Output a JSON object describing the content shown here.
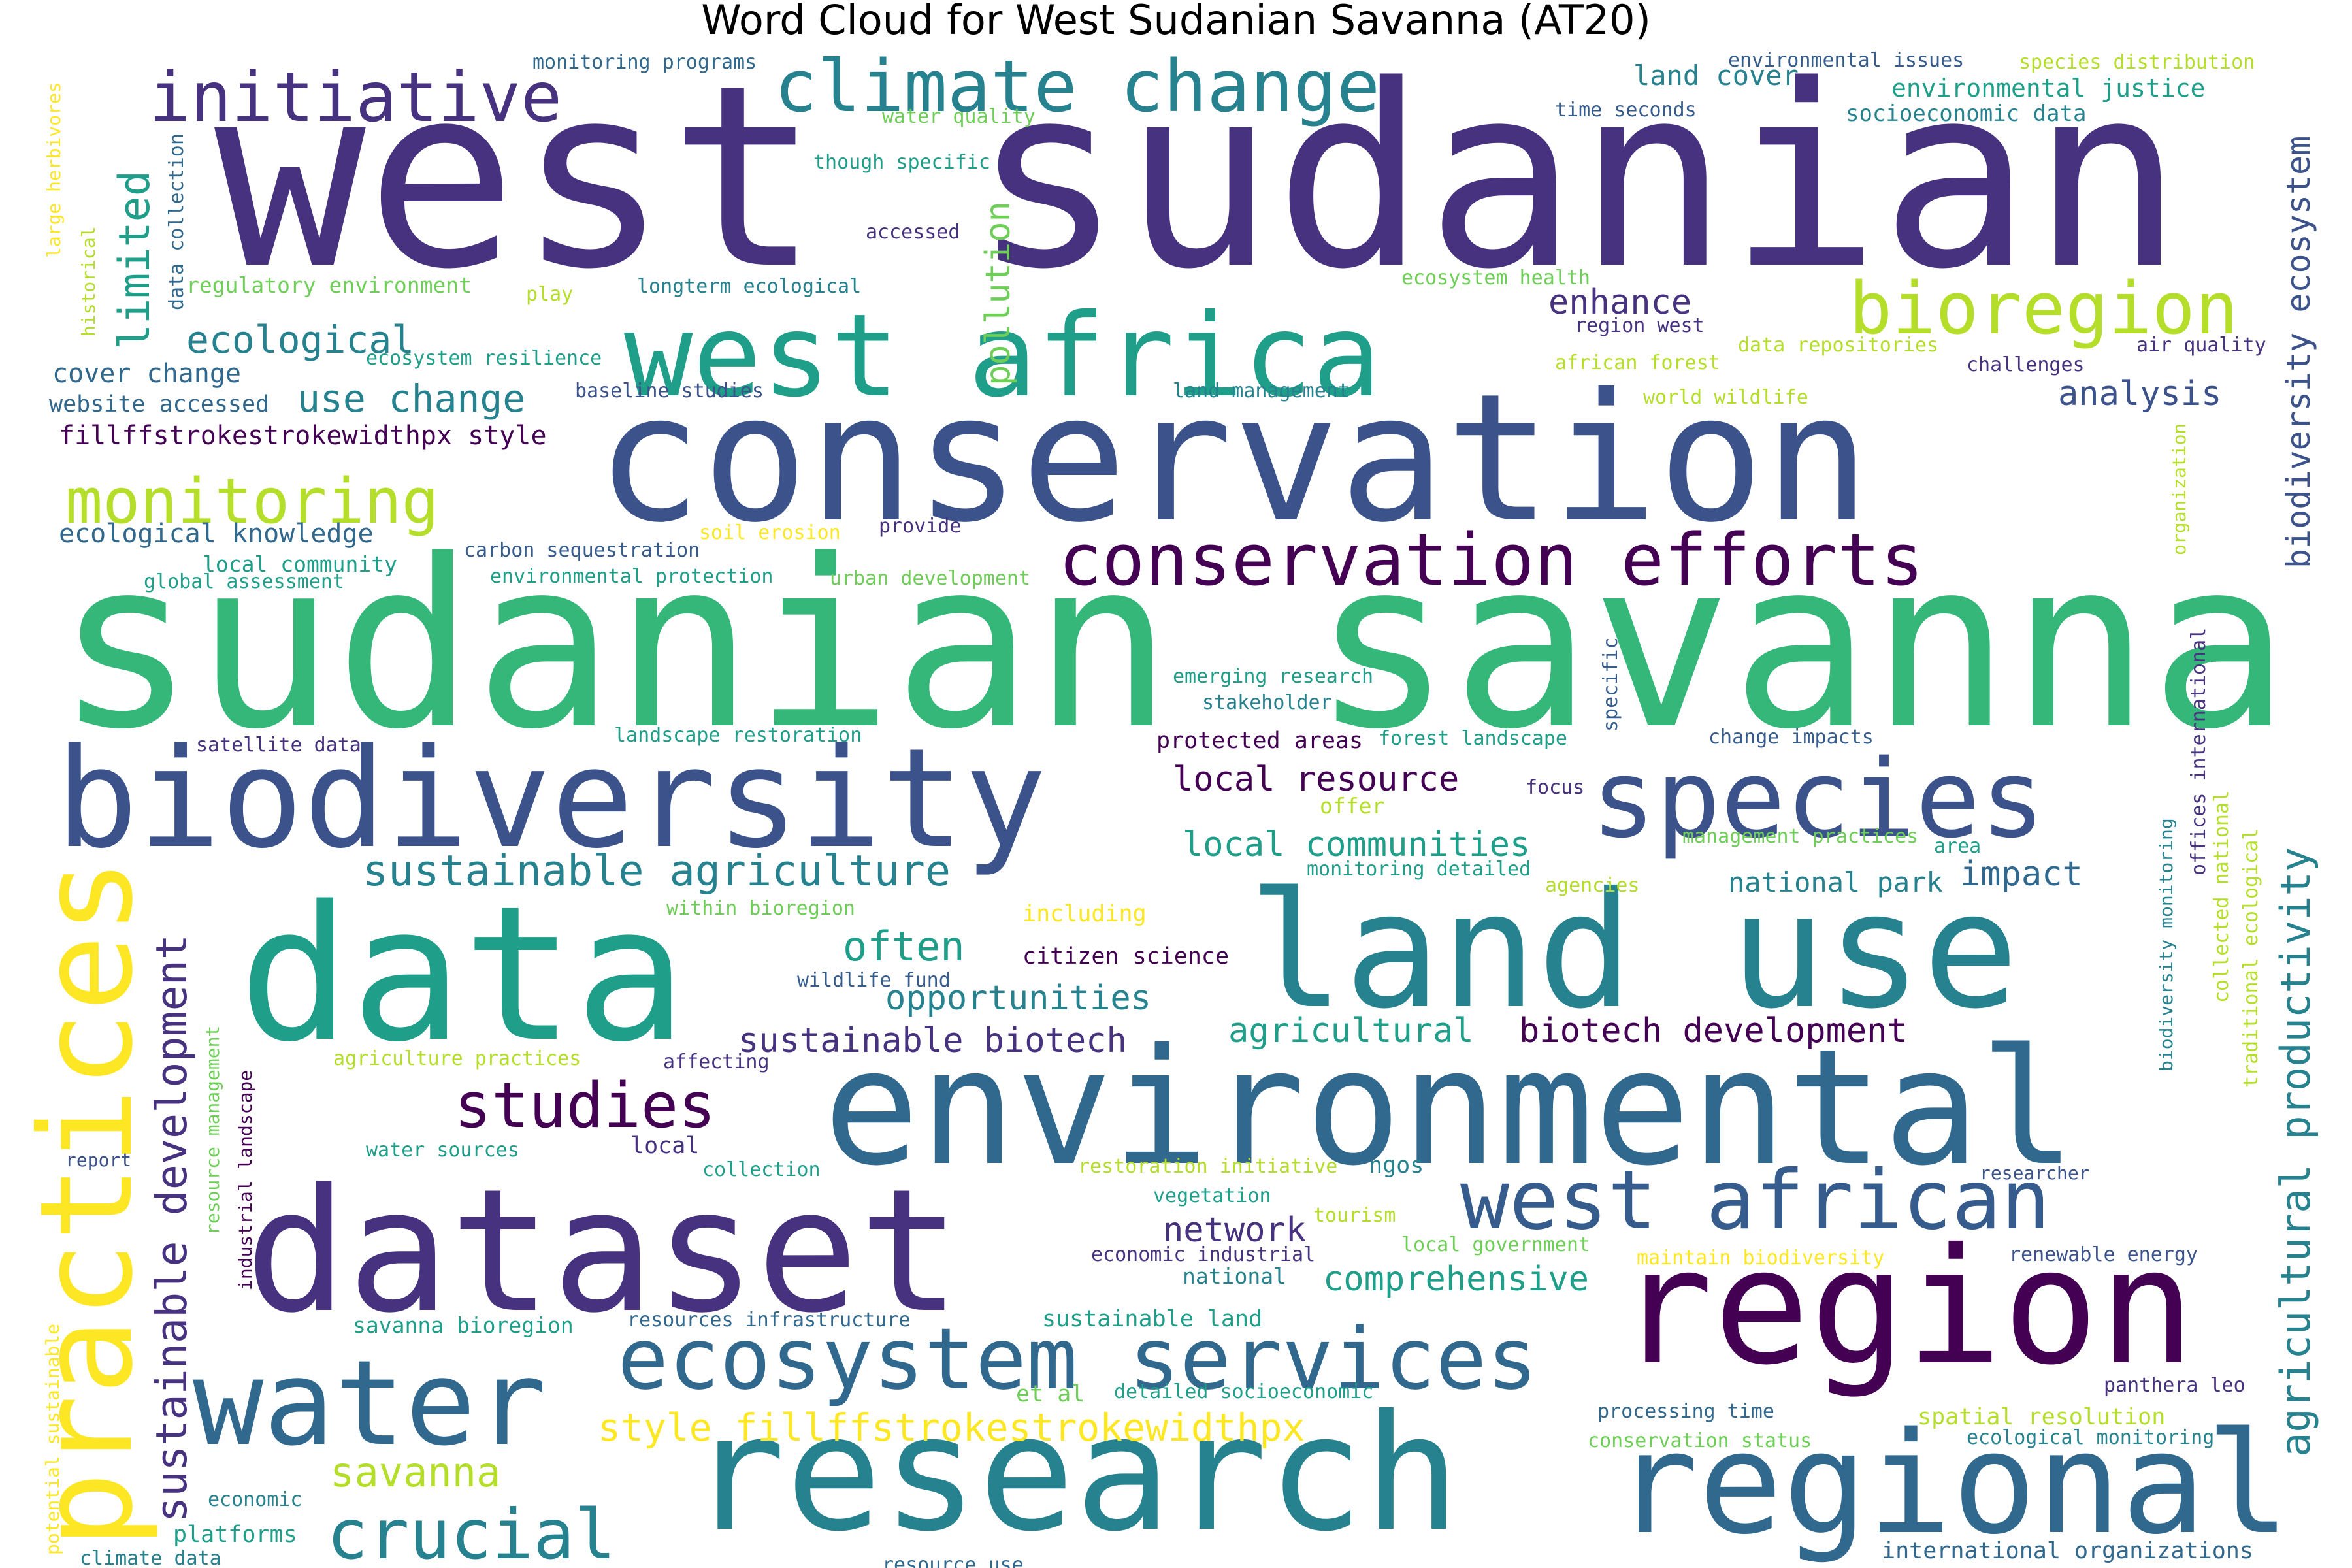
{
  "title": "Word Cloud for West Sudanian Savanna (AT20)",
  "palette": {
    "indigo": "#46327e",
    "purple": "#440154",
    "navy": "#3b528b",
    "blue": "#365c8d",
    "steel": "#31688e",
    "teal": "#26828e",
    "seagreen": "#1f9e89",
    "green": "#35b779",
    "lime": "#6ece58",
    "yellowgreen": "#b5de2b",
    "yellow": "#fde725"
  },
  "words": [
    {
      "text": "west sudanian",
      "color": "indigo"
    },
    {
      "text": "sudanian savanna",
      "color": "green"
    },
    {
      "text": "conservation",
      "color": "navy"
    },
    {
      "text": "environmental",
      "color": "steel"
    },
    {
      "text": "research",
      "color": "teal"
    },
    {
      "text": "dataset",
      "color": "indigo"
    },
    {
      "text": "data",
      "color": "seagreen"
    },
    {
      "text": "land use",
      "color": "teal"
    },
    {
      "text": "biodiversity",
      "color": "navy"
    },
    {
      "text": "region",
      "color": "purple"
    },
    {
      "text": "regional",
      "color": "steel"
    },
    {
      "text": "practices",
      "color": "yellow"
    },
    {
      "text": "water",
      "color": "steel"
    },
    {
      "text": "species",
      "color": "navy"
    },
    {
      "text": "west africa",
      "color": "seagreen"
    },
    {
      "text": "west african",
      "color": "blue"
    },
    {
      "text": "ecosystem services",
      "color": "steel"
    },
    {
      "text": "climate change",
      "color": "teal"
    },
    {
      "text": "conservation efforts",
      "color": "purple"
    },
    {
      "text": "initiative",
      "color": "indigo"
    },
    {
      "text": "bioregion",
      "color": "yellowgreen"
    },
    {
      "text": "monitoring",
      "color": "yellowgreen"
    },
    {
      "text": "studies",
      "color": "purple"
    },
    {
      "text": "crucial",
      "color": "teal"
    },
    {
      "text": "sustainable development",
      "color": "indigo"
    },
    {
      "text": "sustainable agriculture",
      "color": "teal"
    },
    {
      "text": "agricultural productivity",
      "color": "teal"
    },
    {
      "text": "biodiversity ecosystem",
      "color": "navy"
    },
    {
      "text": "savanna",
      "color": "yellowgreen"
    },
    {
      "text": "style fillffstrokestrokewidthpx",
      "color": "yellow"
    },
    {
      "text": "local resource",
      "color": "purple"
    },
    {
      "text": "local communities",
      "color": "seagreen"
    },
    {
      "text": "opportunities",
      "color": "teal"
    },
    {
      "text": "sustainable biotech",
      "color": "indigo"
    },
    {
      "text": "biotech development",
      "color": "purple"
    },
    {
      "text": "agricultural",
      "color": "seagreen"
    },
    {
      "text": "often",
      "color": "seagreen"
    },
    {
      "text": "limited",
      "color": "seagreen"
    },
    {
      "text": "pollution",
      "color": "lime"
    },
    {
      "text": "ecological",
      "color": "teal"
    },
    {
      "text": "use change",
      "color": "teal"
    },
    {
      "text": "enhance",
      "color": "indigo"
    },
    {
      "text": "analysis",
      "color": "navy"
    },
    {
      "text": "network",
      "color": "indigo"
    },
    {
      "text": "comprehensive",
      "color": "seagreen"
    },
    {
      "text": "impact",
      "color": "steel"
    },
    {
      "text": "national park",
      "color": "teal"
    },
    {
      "text": "land cover",
      "color": "teal"
    },
    {
      "text": "environmental justice",
      "color": "seagreen"
    },
    {
      "text": "socioeconomic data",
      "color": "teal"
    },
    {
      "text": "fillffstrokestrokewidthpx style",
      "color": "purple"
    },
    {
      "text": "ecological knowledge",
      "color": "steel"
    },
    {
      "text": "cover change",
      "color": "steel"
    },
    {
      "text": "website accessed",
      "color": "steel"
    },
    {
      "text": "regulatory environment",
      "color": "lime"
    },
    {
      "text": "local community",
      "color": "seagreen"
    },
    {
      "text": "global assessment",
      "color": "seagreen"
    },
    {
      "text": "carbon sequestration",
      "color": "blue"
    },
    {
      "text": "environmental protection",
      "color": "seagreen"
    },
    {
      "text": "monitoring programs",
      "color": "steel"
    },
    {
      "text": "water quality",
      "color": "lime"
    },
    {
      "text": "though specific",
      "color": "seagreen"
    },
    {
      "text": "accessed",
      "color": "indigo"
    },
    {
      "text": "longterm ecological",
      "color": "teal"
    },
    {
      "text": "ecosystem resilience",
      "color": "seagreen"
    },
    {
      "text": "baseline studies",
      "color": "navy"
    },
    {
      "text": "play",
      "color": "yellowgreen"
    },
    {
      "text": "soil erosion",
      "color": "yellow"
    },
    {
      "text": "provide",
      "color": "indigo"
    },
    {
      "text": "urban development",
      "color": "lime"
    },
    {
      "text": "data collection",
      "color": "steel"
    },
    {
      "text": "large herbivores",
      "color": "yellow"
    },
    {
      "text": "historical",
      "color": "yellowgreen"
    },
    {
      "text": "environmental issues",
      "color": "blue"
    },
    {
      "text": "time seconds",
      "color": "blue"
    },
    {
      "text": "species distribution",
      "color": "yellowgreen"
    },
    {
      "text": "ecosystem health",
      "color": "lime"
    },
    {
      "text": "region west",
      "color": "indigo"
    },
    {
      "text": "african forest",
      "color": "yellowgreen"
    },
    {
      "text": "data repositories",
      "color": "yellowgreen"
    },
    {
      "text": "challenges",
      "color": "indigo"
    },
    {
      "text": "air quality",
      "color": "indigo"
    },
    {
      "text": "land management",
      "color": "teal"
    },
    {
      "text": "world wildlife",
      "color": "yellowgreen"
    },
    {
      "text": "organization",
      "color": "yellowgreen"
    },
    {
      "text": "emerging research",
      "color": "seagreen"
    },
    {
      "text": "stakeholder",
      "color": "teal"
    },
    {
      "text": "specific",
      "color": "blue"
    },
    {
      "text": "satellite data",
      "color": "indigo"
    },
    {
      "text": "landscape restoration",
      "color": "seagreen"
    },
    {
      "text": "protected areas",
      "color": "purple"
    },
    {
      "text": "forest landscape",
      "color": "seagreen"
    },
    {
      "text": "change impacts",
      "color": "blue"
    },
    {
      "text": "offices international",
      "color": "indigo"
    },
    {
      "text": "focus",
      "color": "indigo"
    },
    {
      "text": "offer",
      "color": "yellowgreen"
    },
    {
      "text": "management practices",
      "color": "lime"
    },
    {
      "text": "area",
      "color": "seagreen"
    },
    {
      "text": "monitoring detailed",
      "color": "seagreen"
    },
    {
      "text": "agencies",
      "color": "yellowgreen"
    },
    {
      "text": "within bioregion",
      "color": "lime"
    },
    {
      "text": "including",
      "color": "yellow"
    },
    {
      "text": "citizen science",
      "color": "purple"
    },
    {
      "text": "wildlife fund",
      "color": "blue"
    },
    {
      "text": "collected national",
      "color": "yellowgreen"
    },
    {
      "text": "traditional ecological",
      "color": "yellowgreen"
    },
    {
      "text": "biodiversity monitoring",
      "color": "teal"
    },
    {
      "text": "agriculture practices",
      "color": "yellowgreen"
    },
    {
      "text": "affecting",
      "color": "indigo"
    },
    {
      "text": "resource management",
      "color": "lime"
    },
    {
      "text": "industrial landscape",
      "color": "purple"
    },
    {
      "text": "report",
      "color": "navy"
    },
    {
      "text": "water sources",
      "color": "seagreen"
    },
    {
      "text": "local",
      "color": "indigo"
    },
    {
      "text": "collection",
      "color": "seagreen"
    },
    {
      "text": "restoration initiative",
      "color": "yellowgreen"
    },
    {
      "text": "ngos",
      "color": "teal"
    },
    {
      "text": "vegetation",
      "color": "seagreen"
    },
    {
      "text": "tourism",
      "color": "yellowgreen"
    },
    {
      "text": "economic industrial",
      "color": "indigo"
    },
    {
      "text": "local government",
      "color": "lime"
    },
    {
      "text": "maintain biodiversity",
      "color": "yellow"
    },
    {
      "text": "renewable energy",
      "color": "navy"
    },
    {
      "text": "researcher",
      "color": "navy"
    },
    {
      "text": "national",
      "color": "teal"
    },
    {
      "text": "potential sustainable",
      "color": "yellow"
    },
    {
      "text": "savanna bioregion",
      "color": "seagreen"
    },
    {
      "text": "resources infrastructure",
      "color": "steel"
    },
    {
      "text": "sustainable land",
      "color": "seagreen"
    },
    {
      "text": "et al",
      "color": "lime"
    },
    {
      "text": "detailed socioeconomic",
      "color": "seagreen"
    },
    {
      "text": "processing time",
      "color": "steel"
    },
    {
      "text": "conservation status",
      "color": "lime"
    },
    {
      "text": "spatial resolution",
      "color": "yellowgreen"
    },
    {
      "text": "panthera leo",
      "color": "indigo"
    },
    {
      "text": "ecological monitoring",
      "color": "teal"
    },
    {
      "text": "economic",
      "color": "teal"
    },
    {
      "text": "platforms",
      "color": "seagreen"
    },
    {
      "text": "climate data",
      "color": "teal"
    },
    {
      "text": "resource use",
      "color": "steel"
    },
    {
      "text": "international organizations",
      "color": "steel"
    }
  ]
}
